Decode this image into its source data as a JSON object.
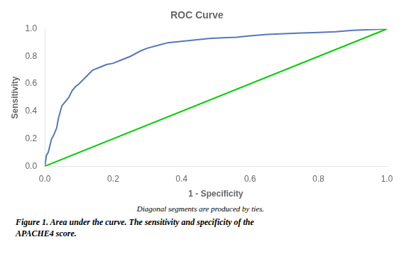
{
  "chart_data": {
    "type": "line",
    "title": "ROC Curve",
    "xlabel": "1 - Specificity",
    "ylabel": "Sensitivity",
    "footnote": "Diagonal segments are produced by ties.",
    "caption": [
      "Figure 1. Area under the curve. The sensitivity and specificity of the",
      "APACHE4 score."
    ],
    "series": [
      {
        "color": "#00cc00",
        "x": [
          0.0,
          1.0
        ],
        "values": [
          0.0,
          1.0
        ]
      },
      {
        "color": "#5577bb",
        "x": [
          0.0,
          0.005,
          0.01,
          0.015,
          0.02,
          0.025,
          0.03,
          0.035,
          0.04,
          0.05,
          0.06,
          0.07,
          0.08,
          0.09,
          0.1,
          0.12,
          0.14,
          0.16,
          0.18,
          0.2,
          0.22,
          0.25,
          0.28,
          0.3,
          0.33,
          0.36,
          0.4,
          0.44,
          0.48,
          0.52,
          0.56,
          0.6,
          0.65,
          0.7,
          0.75,
          0.8,
          0.85,
          0.9,
          0.95,
          1.0
        ],
        "values": [
          0.0,
          0.08,
          0.1,
          0.15,
          0.2,
          0.22,
          0.25,
          0.28,
          0.35,
          0.44,
          0.47,
          0.5,
          0.55,
          0.58,
          0.6,
          0.65,
          0.7,
          0.72,
          0.74,
          0.75,
          0.77,
          0.8,
          0.84,
          0.86,
          0.88,
          0.9,
          0.91,
          0.92,
          0.93,
          0.935,
          0.94,
          0.95,
          0.96,
          0.965,
          0.97,
          0.975,
          0.98,
          0.99,
          0.995,
          1.0
        ]
      }
    ],
    "xlim": [
      0.0,
      1.0
    ],
    "ylim": [
      0.0,
      1.0
    ],
    "xticks": [
      {
        "value": 0.0,
        "label": "0.0"
      },
      {
        "value": 0.2,
        "label": "0.2"
      },
      {
        "value": 0.4,
        "label": "0.4"
      },
      {
        "value": 0.6,
        "label": "0.6"
      },
      {
        "value": 0.8,
        "label": "0.8"
      },
      {
        "value": 1.0,
        "label": "1.0"
      }
    ],
    "yticks": [
      {
        "value": 0.0,
        "label": "0.0"
      },
      {
        "value": 0.2,
        "label": "0.2"
      },
      {
        "value": 0.4,
        "label": "0.4"
      },
      {
        "value": 0.6,
        "label": "0.6"
      },
      {
        "value": 0.8,
        "label": "0.8"
      },
      {
        "value": 1.0,
        "label": "1.0"
      }
    ],
    "grid": false
  }
}
